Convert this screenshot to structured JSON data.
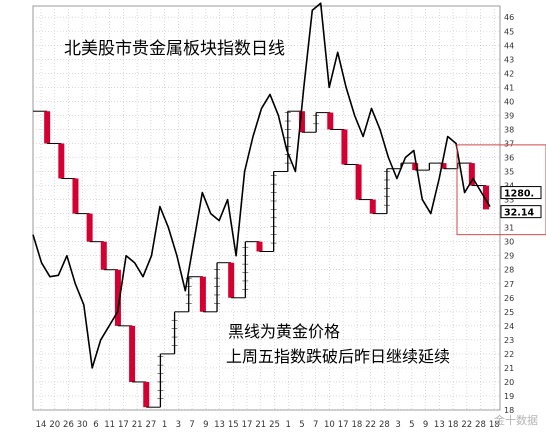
{
  "chart_data": {
    "type": "kagi",
    "title": "北美股市贵金属板块指数日线",
    "annotations": [
      "黑线为黄金价格",
      "上周五指数跌破后昨日继续延续"
    ],
    "watermark": "金十数据",
    "xlabels": [
      "14",
      "20",
      "26",
      "30",
      "6",
      "11",
      "17",
      "21",
      "27",
      "1",
      "3",
      "7",
      "9",
      "13",
      "15",
      "17",
      "21",
      "25",
      "1",
      "5",
      "7",
      "10",
      "17",
      "18",
      "22",
      "28",
      "3",
      "5",
      "9",
      "13",
      "18",
      "22",
      "28",
      "18"
    ],
    "yticks": [
      18,
      19,
      20,
      21,
      22,
      23,
      24,
      25,
      26,
      27,
      28,
      29,
      30,
      31,
      32,
      33,
      34,
      35,
      36,
      37,
      38,
      39,
      40,
      41,
      42,
      43,
      44,
      45,
      46
    ],
    "ylim": [
      18,
      46.8
    ],
    "price_labels": [
      "1280.",
      "32.14"
    ],
    "index_path": [
      39.3,
      37.0,
      34.5,
      32.0,
      30.0,
      28.0,
      24.0,
      20.0,
      18.2,
      22.0,
      25.0,
      27.5,
      25.0,
      28.5,
      26.0,
      30.0,
      29.3,
      35.0,
      39.3,
      37.8,
      39.2,
      38.0,
      35.5,
      33.0,
      32.0,
      35.2,
      35.6,
      35.1,
      35.6,
      35.2,
      35.6,
      34.0,
      32.3
    ],
    "gold_path": [
      30.5,
      28.5,
      27.5,
      27.6,
      29.0,
      27.0,
      25.5,
      21.0,
      23.0,
      24.0,
      25.0,
      29.0,
      28.5,
      27.5,
      29.0,
      32.5,
      31.0,
      29.0,
      26.5,
      30.0,
      33.5,
      32.0,
      31.5,
      33.0,
      29.0,
      35.0,
      37.5,
      39.5,
      40.5,
      39.0,
      36.5,
      35.0,
      41.0,
      46.5,
      47.0,
      41.0,
      43.5,
      41.0,
      39.0,
      37.5,
      39.5,
      38.0,
      36.0,
      34.5,
      36.0,
      36.5,
      33.0,
      32.0,
      34.5,
      37.5,
      37.0,
      33.5,
      34.5,
      33.5,
      32.5
    ],
    "colors": {
      "index_up": "#000000",
      "index_down": "#d50032",
      "gold_line": "#000000",
      "grid": "#c4c4c4",
      "highlight_box": "#d24a4a"
    }
  }
}
